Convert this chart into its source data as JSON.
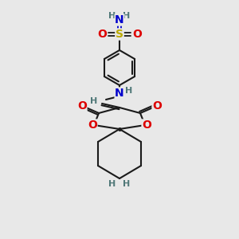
{
  "bg_color": "#e8e8e8",
  "atom_colors": {
    "C": "#000000",
    "N": "#0000cc",
    "O": "#dd0000",
    "S": "#bbaa00",
    "H": "#507878"
  },
  "bond_color": "#1a1a1a",
  "lw": 1.5
}
